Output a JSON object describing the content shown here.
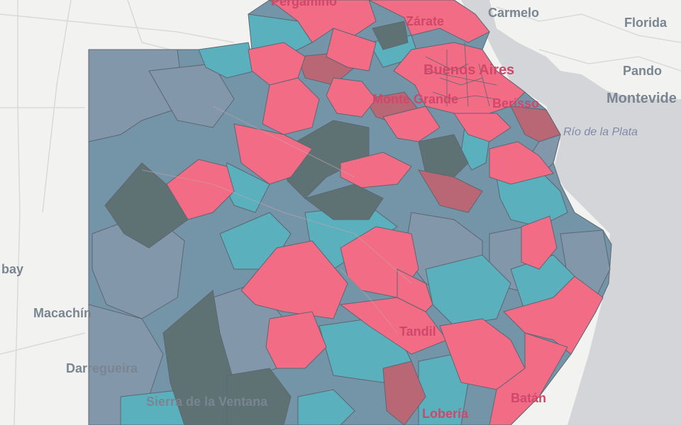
{
  "map": {
    "labels": {
      "pergamino": "Pergamino",
      "zarate": "Zárate",
      "carmelo": "Carmelo",
      "florida": "Florida",
      "buenos_aires": "Buenos Aires",
      "pando": "Pando",
      "montevideo": "Montevide",
      "monte_grande": "Monte Grande",
      "berisso": "Berisso",
      "rio_de_la_plata": "Río de la Plata",
      "pay": "bay",
      "macachin": "Macachín",
      "darregueira": "Darregueira",
      "tandil": "Tandil",
      "sierra": "Sierra de la Ventana",
      "batan": "Batán",
      "loberia": "Lobería"
    },
    "colors": {
      "background": "#f2f2f0",
      "water": "#d3d5d9",
      "pink": "#f26c85",
      "teal": "#5ab0bd",
      "blue_gray": "#7494a8",
      "slate": "#8297aa",
      "dark_gray": "#5f7273",
      "mauve": "#b96675",
      "border": "#5d6670"
    }
  }
}
